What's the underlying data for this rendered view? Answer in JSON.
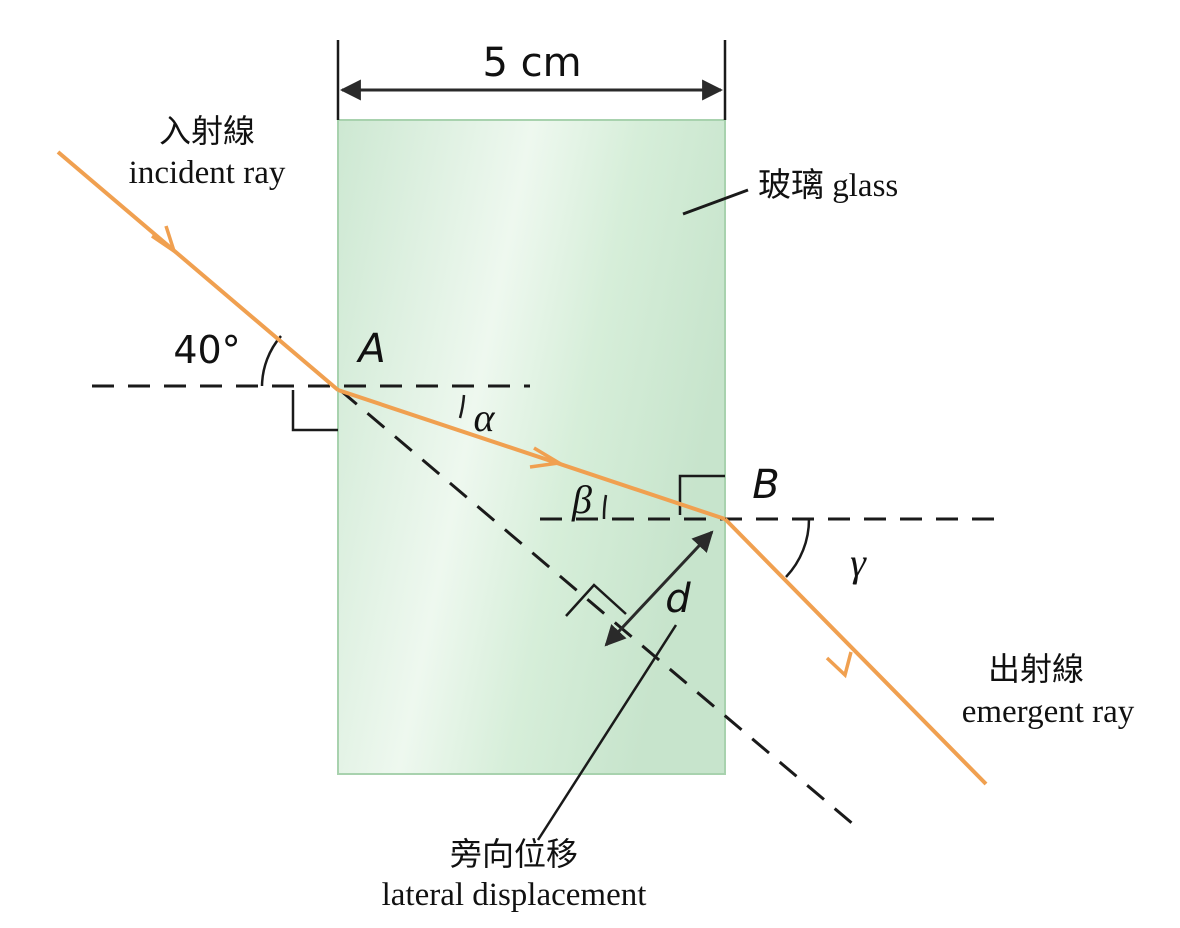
{
  "labels": {
    "width": "5 cm",
    "glass": "玻璃 glass",
    "incident_zh": "入射線",
    "incident_en": "incident ray",
    "emergent_zh": "出射線",
    "emergent_en": "emergent ray",
    "lateral_zh": "旁向位移",
    "lateral_en": "lateral displacement",
    "angle_incidence": "40°",
    "point_a": "A",
    "point_b": "B",
    "alpha": "α",
    "beta": "β",
    "gamma": "γ",
    "d": "d"
  },
  "colors": {
    "ray": "#F0A050",
    "glass_fill": "#D3ECD6",
    "glass_edge": "#9FCBA6",
    "line": "#1a1a1a"
  }
}
